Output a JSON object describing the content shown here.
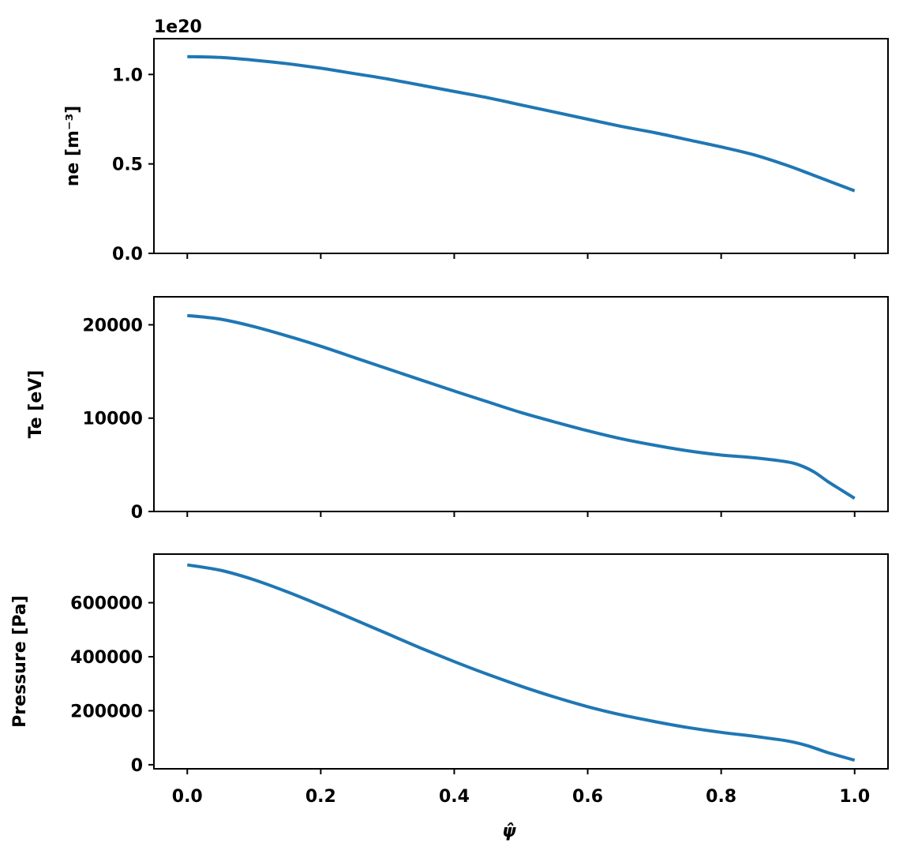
{
  "chart_data": [
    {
      "type": "line",
      "ylabel": "ne [m⁻³]",
      "offset_text": "1e20",
      "xlim": [
        -0.05,
        1.05
      ],
      "ylim": [
        0.0,
        1.2
      ],
      "yticks": [
        0.0,
        0.5,
        1.0
      ],
      "ytick_labels": [
        "0.0",
        "0.5",
        "1.0"
      ],
      "xticks": [
        0.0,
        0.2,
        0.4,
        0.6,
        0.8,
        1.0
      ],
      "xtick_labels_visible": false,
      "color": "#1f77b4",
      "series": [
        {
          "x": [
            0.0,
            0.05,
            0.1,
            0.15,
            0.2,
            0.25,
            0.3,
            0.35,
            0.4,
            0.45,
            0.5,
            0.55,
            0.6,
            0.65,
            0.7,
            0.75,
            0.8,
            0.85,
            0.9,
            0.95,
            1.0
          ],
          "values": [
            1.1,
            1.095,
            1.08,
            1.06,
            1.035,
            1.005,
            0.975,
            0.94,
            0.905,
            0.87,
            0.83,
            0.79,
            0.75,
            0.71,
            0.675,
            0.635,
            0.595,
            0.55,
            0.49,
            0.42,
            0.35
          ]
        }
      ]
    },
    {
      "type": "line",
      "ylabel": "Te [eV]",
      "xlim": [
        -0.05,
        1.05
      ],
      "ylim": [
        0,
        23000
      ],
      "yticks": [
        0,
        10000,
        20000
      ],
      "ytick_labels": [
        "0",
        "10000",
        "20000"
      ],
      "xticks": [
        0.0,
        0.2,
        0.4,
        0.6,
        0.8,
        1.0
      ],
      "xtick_labels_visible": false,
      "color": "#1f77b4",
      "series": [
        {
          "x": [
            0.0,
            0.05,
            0.1,
            0.15,
            0.2,
            0.25,
            0.3,
            0.35,
            0.4,
            0.45,
            0.5,
            0.55,
            0.6,
            0.65,
            0.7,
            0.75,
            0.8,
            0.85,
            0.9,
            0.92,
            0.94,
            0.96,
            0.98,
            1.0
          ],
          "values": [
            21000,
            20600,
            19800,
            18800,
            17700,
            16500,
            15300,
            14100,
            12900,
            11750,
            10600,
            9600,
            8650,
            7800,
            7100,
            6500,
            6050,
            5750,
            5300,
            4900,
            4200,
            3200,
            2300,
            1400
          ]
        }
      ]
    },
    {
      "type": "line",
      "ylabel": "Pressure [Pa]",
      "xlabel": "ψ̂",
      "xlim": [
        -0.05,
        1.05
      ],
      "ylim": [
        -15000,
        780000
      ],
      "yticks": [
        0,
        200000,
        400000,
        600000
      ],
      "ytick_labels": [
        "0",
        "200000",
        "400000",
        "600000"
      ],
      "xticks": [
        0.0,
        0.2,
        0.4,
        0.6,
        0.8,
        1.0
      ],
      "xtick_labels": [
        "0.0",
        "0.2",
        "0.4",
        "0.6",
        "0.8",
        "1.0"
      ],
      "xtick_labels_visible": true,
      "color": "#1f77b4",
      "series": [
        {
          "x": [
            0.0,
            0.05,
            0.1,
            0.15,
            0.2,
            0.25,
            0.3,
            0.35,
            0.4,
            0.45,
            0.5,
            0.55,
            0.6,
            0.65,
            0.7,
            0.75,
            0.8,
            0.85,
            0.9,
            0.93,
            0.96,
            1.0
          ],
          "values": [
            740000,
            720000,
            685000,
            640000,
            590000,
            538000,
            485000,
            432000,
            382000,
            335000,
            291000,
            251000,
            215000,
            185000,
            160000,
            138000,
            120000,
            105000,
            88000,
            70000,
            45000,
            17000
          ]
        }
      ]
    }
  ]
}
